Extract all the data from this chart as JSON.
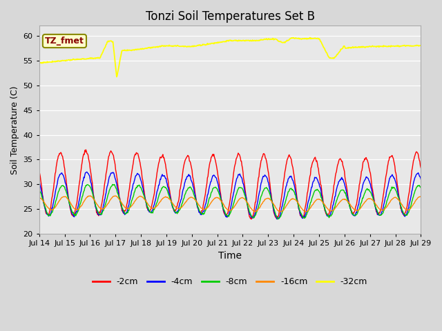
{
  "title": "Tonzi Soil Temperatures Set B",
  "xlabel": "Time",
  "ylabel": "Soil Temperature (C)",
  "ylim": [
    20,
    62
  ],
  "yticks": [
    20,
    25,
    30,
    35,
    40,
    45,
    50,
    55,
    60
  ],
  "fig_bg": "#d8d8d8",
  "plot_bg": "#e8e8e8",
  "legend_labels": [
    "-2cm",
    "-4cm",
    "-8cm",
    "-16cm",
    "-32cm"
  ],
  "legend_colors": [
    "#ff0000",
    "#0000ff",
    "#00cc00",
    "#ff8800",
    "#ffff00"
  ],
  "line_widths": [
    1.0,
    1.0,
    1.0,
    1.0,
    1.3
  ],
  "tz_fmet_label": "TZ_fmet",
  "tz_fmet_color": "#880000",
  "tz_fmet_bg": "#ffffcc",
  "tz_fmet_border": "#888800",
  "n_days": 15,
  "start_day": 14,
  "pts_per_day": 48
}
